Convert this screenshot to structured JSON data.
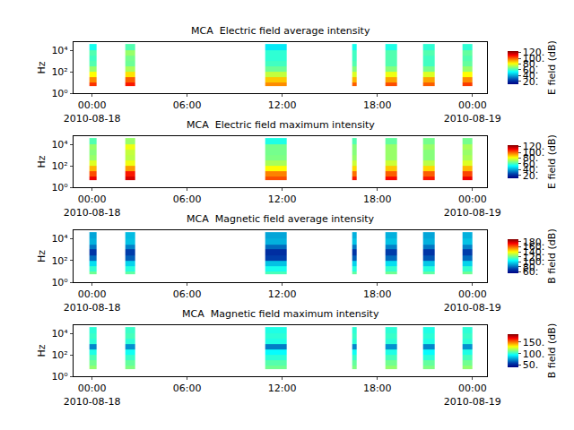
{
  "chart_data": [
    {
      "type": "heatmap",
      "title": "MCA  Electric field average intensity",
      "ylabel": "Hz",
      "log": "y",
      "color": "Jet",
      "x": [
        "2010-08-17 23:50",
        "2010-08-18 00:17",
        "2010-08-18 02:06",
        "2010-08-18 02:43",
        "2010-08-18 10:55",
        "2010-08-18 12:17",
        "2010-08-18 16:25",
        "2010-08-18 16:42",
        "2010-08-18 18:30",
        "2010-08-18 19:15",
        "2010-08-18 20:53",
        "2010-08-18 21:37",
        "2010-08-18 23:22",
        "2010-08-19 00:00"
      ],
      "y": [
        5,
        10,
        30,
        100,
        300,
        1000,
        3000,
        10000,
        40000
      ],
      "z": [
        [
          105,
          null,
          108,
          null,
          95,
          null,
          100,
          null,
          102,
          null,
          100,
          null,
          104
        ],
        [
          95,
          null,
          100,
          null,
          88,
          null,
          90,
          null,
          92,
          null,
          92,
          null,
          95
        ],
        [
          82,
          null,
          85,
          null,
          75,
          null,
          78,
          null,
          80,
          null,
          78,
          null,
          82
        ],
        [
          70,
          null,
          72,
          null,
          65,
          null,
          68,
          null,
          68,
          null,
          66,
          null,
          70
        ],
        [
          62,
          null,
          65,
          null,
          60,
          null,
          62,
          null,
          62,
          null,
          60,
          null,
          64
        ],
        [
          60,
          null,
          66,
          null,
          58,
          null,
          60,
          null,
          62,
          null,
          60,
          null,
          62
        ],
        [
          62,
          null,
          70,
          null,
          58,
          null,
          60,
          null,
          62,
          null,
          62,
          null,
          64
        ],
        [
          55,
          null,
          62,
          null,
          50,
          null,
          55,
          null,
          56,
          null,
          58,
          null,
          58
        ]
      ],
      "xlim": [
        "2010-08-17 22:50",
        "2010-08-19 00:55"
      ],
      "xticks": [
        {
          "value": "2010-08-18 00:00",
          "label": "00:00\n2010-08-18"
        },
        {
          "value": "2010-08-18 06:00",
          "label": "06:00"
        },
        {
          "value": "2010-08-18 12:00",
          "label": "12:00"
        },
        {
          "value": "2010-08-18 18:00",
          "label": "18:00"
        },
        {
          "value": "2010-08-19 00:00",
          "label": "00:00\n2010-08-19"
        }
      ],
      "ylim": [
        1,
        60000
      ],
      "yticks": [
        {
          "value": 1,
          "label": "10⁰"
        },
        {
          "value": 100,
          "label": "10²"
        },
        {
          "value": 10000,
          "label": "10⁴"
        }
      ],
      "colorbar": {
        "title": "E field (dB)",
        "range": [
          10,
          125
        ],
        "ticks": [
          {
            "value": 20,
            "label": "20."
          },
          {
            "value": 40,
            "label": "40."
          },
          {
            "value": 60,
            "label": "60."
          },
          {
            "value": 80,
            "label": "80."
          },
          {
            "value": 100,
            "label": "100."
          },
          {
            "value": 120,
            "label": "120."
          }
        ]
      }
    },
    {
      "type": "heatmap",
      "title": "MCA  Electric field maximum intensity",
      "ylabel": "Hz",
      "log": "y",
      "color": "Jet",
      "x": [
        "2010-08-17 23:50",
        "2010-08-18 00:17",
        "2010-08-18 02:06",
        "2010-08-18 02:43",
        "2010-08-18 10:55",
        "2010-08-18 12:17",
        "2010-08-18 16:25",
        "2010-08-18 16:42",
        "2010-08-18 18:30",
        "2010-08-18 19:15",
        "2010-08-18 20:53",
        "2010-08-18 21:37",
        "2010-08-18 23:22",
        "2010-08-19 00:00"
      ],
      "y": [
        5,
        10,
        30,
        100,
        300,
        1000,
        3000,
        10000,
        40000
      ],
      "z": [
        [
          112,
          null,
          115,
          null,
          102,
          null,
          108,
          null,
          110,
          null,
          108,
          null,
          112
        ],
        [
          102,
          null,
          108,
          null,
          96,
          null,
          98,
          null,
          100,
          null,
          100,
          null,
          103
        ],
        [
          90,
          null,
          93,
          null,
          82,
          null,
          86,
          null,
          88,
          null,
          86,
          null,
          90
        ],
        [
          78,
          null,
          80,
          null,
          72,
          null,
          76,
          null,
          76,
          null,
          74,
          null,
          78
        ],
        [
          70,
          null,
          74,
          null,
          67,
          null,
          70,
          null,
          70,
          null,
          68,
          null,
          72
        ],
        [
          68,
          null,
          75,
          null,
          66,
          null,
          68,
          null,
          70,
          null,
          68,
          null,
          70
        ],
        [
          70,
          null,
          80,
          null,
          66,
          null,
          68,
          null,
          70,
          null,
          70,
          null,
          72
        ],
        [
          62,
          null,
          70,
          null,
          56,
          null,
          62,
          null,
          64,
          null,
          66,
          null,
          66
        ]
      ],
      "xlim": [
        "2010-08-17 22:50",
        "2010-08-19 00:55"
      ],
      "xticks": [
        {
          "value": "2010-08-18 00:00",
          "label": "00:00\n2010-08-18"
        },
        {
          "value": "2010-08-18 06:00",
          "label": "06:00"
        },
        {
          "value": "2010-08-18 12:00",
          "label": "12:00"
        },
        {
          "value": "2010-08-18 18:00",
          "label": "18:00"
        },
        {
          "value": "2010-08-19 00:00",
          "label": "00:00\n2010-08-19"
        }
      ],
      "ylim": [
        1,
        60000
      ],
      "yticks": [
        {
          "value": 1,
          "label": "10⁰"
        },
        {
          "value": 100,
          "label": "10²"
        },
        {
          "value": 10000,
          "label": "10⁴"
        }
      ],
      "colorbar": {
        "title": "E field (dB)",
        "range": [
          10,
          125
        ],
        "ticks": [
          {
            "value": 20,
            "label": "20."
          },
          {
            "value": 40,
            "label": "40."
          },
          {
            "value": 60,
            "label": "60."
          },
          {
            "value": 80,
            "label": "80."
          },
          {
            "value": 100,
            "label": "100."
          },
          {
            "value": 120,
            "label": "120."
          }
        ]
      }
    },
    {
      "type": "heatmap",
      "title": "MCA  Magnetic field average intensity",
      "ylabel": "Hz",
      "log": "y",
      "color": "Jet",
      "x": [
        "2010-08-17 23:50",
        "2010-08-18 00:17",
        "2010-08-18 02:06",
        "2010-08-18 02:43",
        "2010-08-18 10:55",
        "2010-08-18 12:17",
        "2010-08-18 16:25",
        "2010-08-18 16:42",
        "2010-08-18 18:30",
        "2010-08-18 19:15",
        "2010-08-18 20:53",
        "2010-08-18 21:37",
        "2010-08-18 23:22",
        "2010-08-19 00:00"
      ],
      "y": [
        5,
        10,
        30,
        100,
        300,
        1000,
        3000,
        10000,
        40000
      ],
      "z": [
        [
          120,
          null,
          118,
          null,
          115,
          null,
          118,
          null,
          120,
          null,
          118,
          null,
          120
        ],
        [
          112,
          null,
          110,
          null,
          108,
          null,
          110,
          null,
          112,
          null,
          110,
          null,
          112
        ],
        [
          100,
          null,
          98,
          null,
          95,
          null,
          98,
          null,
          100,
          null,
          96,
          null,
          98
        ],
        [
          80,
          null,
          78,
          null,
          72,
          null,
          78,
          null,
          80,
          null,
          76,
          null,
          80
        ],
        [
          70,
          null,
          72,
          null,
          68,
          null,
          70,
          null,
          72,
          null,
          70,
          null,
          72
        ],
        [
          82,
          null,
          84,
          null,
          80,
          null,
          82,
          null,
          84,
          null,
          82,
          null,
          84
        ],
        [
          92,
          null,
          95,
          null,
          92,
          null,
          95,
          null,
          95,
          null,
          92,
          null,
          95
        ],
        [
          90,
          null,
          94,
          null,
          90,
          null,
          92,
          null,
          92,
          null,
          90,
          null,
          92
        ]
      ],
      "xlim": [
        "2010-08-17 22:50",
        "2010-08-19 00:55"
      ],
      "xticks": [
        {
          "value": "2010-08-18 00:00",
          "label": "00:00\n2010-08-18"
        },
        {
          "value": "2010-08-18 06:00",
          "label": "06:00"
        },
        {
          "value": "2010-08-18 12:00",
          "label": "12:00"
        },
        {
          "value": "2010-08-18 18:00",
          "label": "18:00"
        },
        {
          "value": "2010-08-19 00:00",
          "label": "00:00\n2010-08-19"
        }
      ],
      "ylim": [
        1,
        60000
      ],
      "yticks": [
        {
          "value": 1,
          "label": "10⁰"
        },
        {
          "value": 100,
          "label": "10²"
        },
        {
          "value": 10000,
          "label": "10⁴"
        }
      ],
      "colorbar": {
        "title": "B field (dB)",
        "range": [
          55,
          190
        ],
        "ticks": [
          {
            "value": 60,
            "label": "60."
          },
          {
            "value": 80,
            "label": "80."
          },
          {
            "value": 100,
            "label": "100."
          },
          {
            "value": 120,
            "label": "120."
          },
          {
            "value": 140,
            "label": "140."
          },
          {
            "value": 160,
            "label": "160."
          },
          {
            "value": 180,
            "label": "180."
          }
        ]
      }
    },
    {
      "type": "heatmap",
      "title": "MCA  Magnetic field maximum intensity",
      "ylabel": "Hz",
      "log": "y",
      "color": "Jet",
      "x": [
        "2010-08-17 23:50",
        "2010-08-18 00:17",
        "2010-08-18 02:06",
        "2010-08-18 02:43",
        "2010-08-18 10:55",
        "2010-08-18 12:17",
        "2010-08-18 16:25",
        "2010-08-18 16:42",
        "2010-08-18 18:30",
        "2010-08-18 19:15",
        "2010-08-18 20:53",
        "2010-08-18 21:37",
        "2010-08-18 23:22",
        "2010-08-19 00:00"
      ],
      "y": [
        5,
        10,
        30,
        100,
        300,
        1000,
        3000,
        10000,
        40000
      ],
      "z": [
        [
          115,
          null,
          112,
          null,
          110,
          null,
          112,
          null,
          115,
          null,
          112,
          null,
          115
        ],
        [
          110,
          null,
          108,
          null,
          106,
          null,
          108,
          null,
          110,
          null,
          108,
          null,
          110
        ],
        [
          105,
          null,
          102,
          null,
          100,
          null,
          102,
          null,
          104,
          null,
          100,
          null,
          104
        ],
        [
          98,
          null,
          96,
          null,
          94,
          null,
          96,
          null,
          98,
          null,
          94,
          null,
          98
        ],
        [
          72,
          null,
          74,
          null,
          70,
          null,
          72,
          null,
          74,
          null,
          72,
          null,
          74
        ],
        [
          100,
          null,
          100,
          null,
          98,
          null,
          100,
          null,
          100,
          null,
          98,
          null,
          100
        ],
        [
          102,
          null,
          104,
          null,
          100,
          null,
          102,
          null,
          102,
          null,
          100,
          null,
          102
        ],
        [
          100,
          null,
          102,
          null,
          98,
          null,
          100,
          null,
          100,
          null,
          98,
          null,
          100
        ]
      ],
      "xlim": [
        "2010-08-17 22:50",
        "2010-08-19 00:55"
      ],
      "xticks": [
        {
          "value": "2010-08-18 00:00",
          "label": "00:00\n2010-08-18"
        },
        {
          "value": "2010-08-18 06:00",
          "label": "06:00"
        },
        {
          "value": "2010-08-18 12:00",
          "label": "12:00"
        },
        {
          "value": "2010-08-18 18:00",
          "label": "18:00"
        },
        {
          "value": "2010-08-19 00:00",
          "label": "00:00\n2010-08-19"
        }
      ],
      "ylim": [
        1,
        60000
      ],
      "yticks": [
        {
          "value": 1,
          "label": "10⁰"
        },
        {
          "value": 100,
          "label": "10²"
        },
        {
          "value": 10000,
          "label": "10⁴"
        }
      ],
      "colorbar": {
        "title": "B field (dB)",
        "range": [
          40,
          185
        ],
        "ticks": [
          {
            "value": 50,
            "label": "50."
          },
          {
            "value": 100,
            "label": "100."
          },
          {
            "value": 150,
            "label": "150."
          }
        ]
      }
    }
  ]
}
